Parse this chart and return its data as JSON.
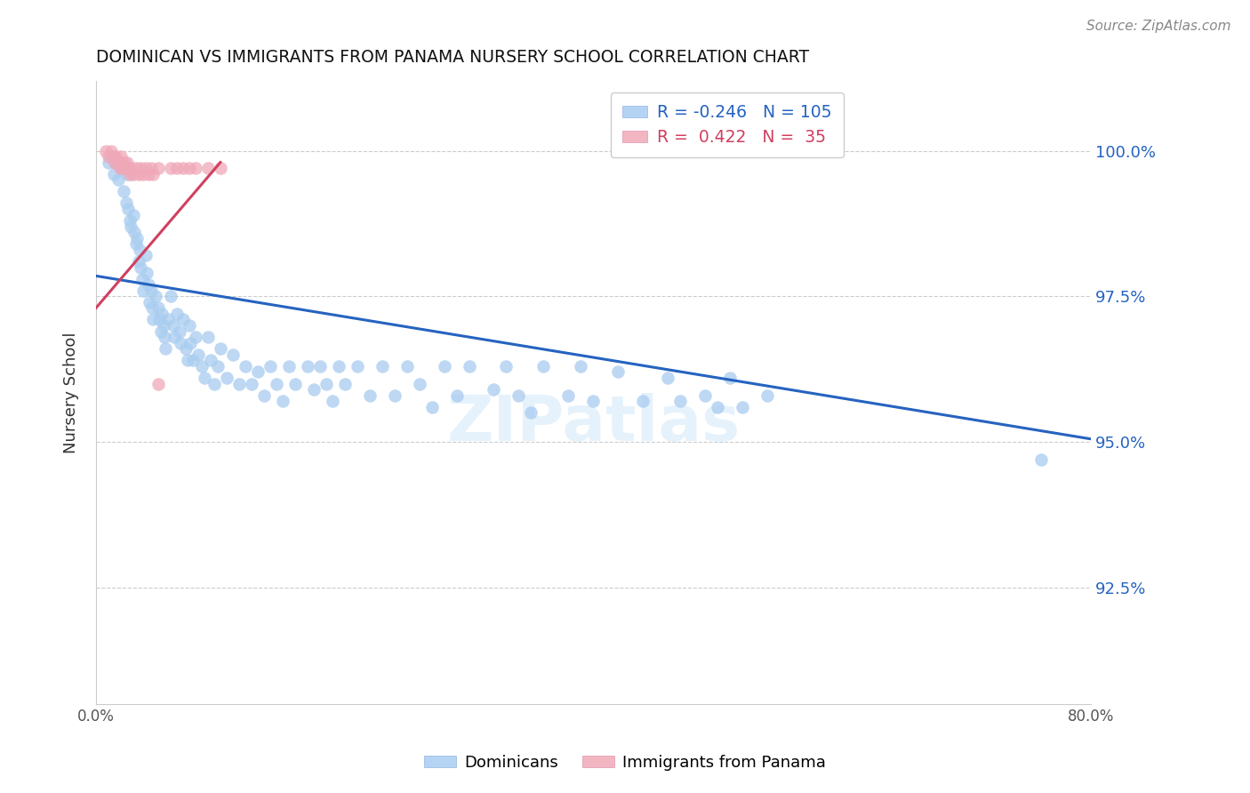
{
  "title": "DOMINICAN VS IMMIGRANTS FROM PANAMA NURSERY SCHOOL CORRELATION CHART",
  "source": "Source: ZipAtlas.com",
  "ylabel": "Nursery School",
  "ytick_labels": [
    "100.0%",
    "97.5%",
    "95.0%",
    "92.5%"
  ],
  "ytick_values": [
    1.0,
    0.975,
    0.95,
    0.925
  ],
  "xlim": [
    0.0,
    0.8
  ],
  "ylim": [
    0.905,
    1.012
  ],
  "legend_blue_R": "-0.246",
  "legend_blue_N": "105",
  "legend_pink_R": "0.422",
  "legend_pink_N": "35",
  "blue_color": "#A8CCF0",
  "pink_color": "#F0A8B8",
  "blue_line_color": "#2563C0",
  "pink_line_color": "#D04060",
  "watermark": "ZIPatlas",
  "blue_scatter_x": [
    0.01,
    0.012,
    0.014,
    0.016,
    0.018,
    0.02,
    0.022,
    0.024,
    0.025,
    0.026,
    0.027,
    0.028,
    0.03,
    0.031,
    0.032,
    0.033,
    0.034,
    0.035,
    0.036,
    0.037,
    0.038,
    0.04,
    0.041,
    0.042,
    0.043,
    0.044,
    0.045,
    0.046,
    0.048,
    0.05,
    0.051,
    0.052,
    0.053,
    0.054,
    0.055,
    0.056,
    0.058,
    0.06,
    0.062,
    0.063,
    0.065,
    0.067,
    0.068,
    0.07,
    0.072,
    0.074,
    0.075,
    0.076,
    0.078,
    0.08,
    0.082,
    0.085,
    0.087,
    0.09,
    0.092,
    0.095,
    0.098,
    0.1,
    0.105,
    0.11,
    0.115,
    0.12,
    0.125,
    0.13,
    0.135,
    0.14,
    0.145,
    0.15,
    0.155,
    0.16,
    0.17,
    0.175,
    0.18,
    0.185,
    0.19,
    0.195,
    0.2,
    0.21,
    0.22,
    0.23,
    0.24,
    0.25,
    0.26,
    0.27,
    0.28,
    0.29,
    0.3,
    0.32,
    0.33,
    0.34,
    0.35,
    0.36,
    0.38,
    0.39,
    0.4,
    0.42,
    0.44,
    0.46,
    0.47,
    0.49,
    0.5,
    0.51,
    0.52,
    0.54,
    0.76
  ],
  "blue_scatter_y": [
    0.998,
    0.999,
    0.996,
    0.998,
    0.995,
    0.997,
    0.993,
    0.991,
    0.996,
    0.99,
    0.988,
    0.987,
    0.989,
    0.986,
    0.984,
    0.985,
    0.981,
    0.983,
    0.98,
    0.978,
    0.976,
    0.982,
    0.979,
    0.977,
    0.974,
    0.976,
    0.973,
    0.971,
    0.975,
    0.973,
    0.971,
    0.969,
    0.972,
    0.97,
    0.968,
    0.966,
    0.971,
    0.975,
    0.97,
    0.968,
    0.972,
    0.969,
    0.967,
    0.971,
    0.966,
    0.964,
    0.97,
    0.967,
    0.964,
    0.968,
    0.965,
    0.963,
    0.961,
    0.968,
    0.964,
    0.96,
    0.963,
    0.966,
    0.961,
    0.965,
    0.96,
    0.963,
    0.96,
    0.962,
    0.958,
    0.963,
    0.96,
    0.957,
    0.963,
    0.96,
    0.963,
    0.959,
    0.963,
    0.96,
    0.957,
    0.963,
    0.96,
    0.963,
    0.958,
    0.963,
    0.958,
    0.963,
    0.96,
    0.956,
    0.963,
    0.958,
    0.963,
    0.959,
    0.963,
    0.958,
    0.955,
    0.963,
    0.958,
    0.963,
    0.957,
    0.962,
    0.957,
    0.961,
    0.957,
    0.958,
    0.956,
    0.961,
    0.956,
    0.958,
    0.947
  ],
  "pink_scatter_x": [
    0.008,
    0.01,
    0.012,
    0.014,
    0.015,
    0.016,
    0.018,
    0.019,
    0.02,
    0.021,
    0.022,
    0.023,
    0.024,
    0.025,
    0.026,
    0.027,
    0.028,
    0.03,
    0.032,
    0.034,
    0.036,
    0.038,
    0.04,
    0.042,
    0.044,
    0.046,
    0.05,
    0.06,
    0.065,
    0.07,
    0.075,
    0.08,
    0.09,
    0.1,
    0.05
  ],
  "pink_scatter_y": [
    1.0,
    0.999,
    1.0,
    0.999,
    0.998,
    0.999,
    0.998,
    0.997,
    0.999,
    0.998,
    0.997,
    0.998,
    0.997,
    0.998,
    0.997,
    0.996,
    0.997,
    0.996,
    0.997,
    0.996,
    0.997,
    0.996,
    0.997,
    0.996,
    0.997,
    0.996,
    0.997,
    0.997,
    0.997,
    0.997,
    0.997,
    0.997,
    0.997,
    0.997,
    0.96
  ],
  "blue_trend_x": [
    0.0,
    0.8
  ],
  "blue_trend_y": [
    0.9785,
    0.9505
  ],
  "pink_trend_x": [
    0.0,
    0.1
  ],
  "pink_trend_y": [
    0.973,
    0.998
  ]
}
